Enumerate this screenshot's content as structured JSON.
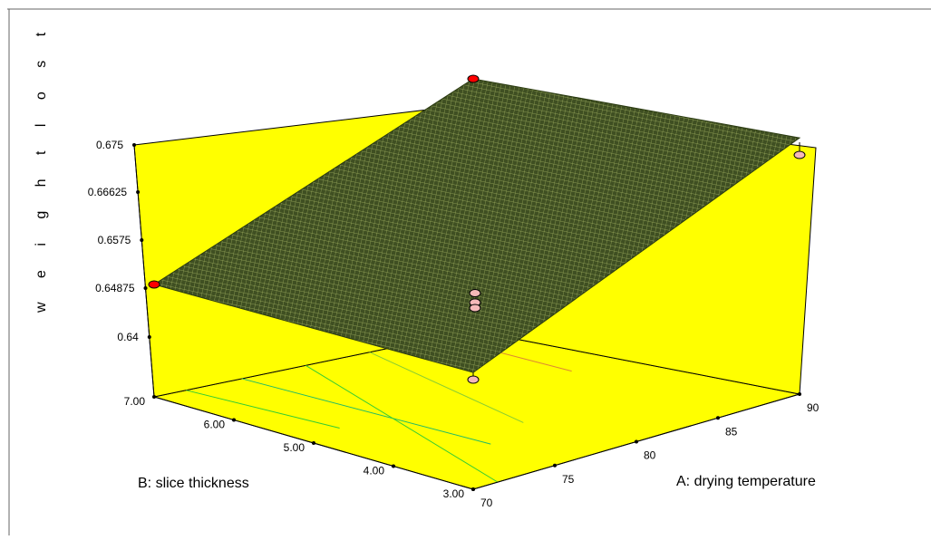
{
  "chart_data": {
    "type": "surface3d",
    "title": "",
    "x_axis": {
      "label": "A: drying temperature",
      "ticks": [
        70,
        75,
        80,
        85,
        90
      ],
      "tick_labels": [
        "70",
        "75",
        "80",
        "85",
        "90"
      ],
      "range": [
        70,
        90
      ]
    },
    "y_axis": {
      "label": "B: slice thickness",
      "ticks": [
        3,
        4,
        5,
        6,
        7
      ],
      "tick_labels": [
        "3.00",
        "4.00",
        "5.00",
        "6.00",
        "7.00"
      ],
      "range": [
        3,
        7
      ]
    },
    "z_axis": {
      "label": "w e i g h t   l o s t",
      "ticks": [
        0.64,
        0.64875,
        0.6575,
        0.66625,
        0.675
      ],
      "tick_labels": [
        "0.64",
        "0.64875",
        "0.6575",
        "0.66625",
        "0.675"
      ],
      "range": [
        0.64,
        0.675
      ]
    },
    "surface_corners": [
      {
        "x": 70,
        "y": 3,
        "z": 0.6505
      },
      {
        "x": 90,
        "y": 3,
        "z": 0.6758
      },
      {
        "x": 90,
        "y": 7,
        "z": 0.675
      },
      {
        "x": 70,
        "y": 7,
        "z": 0.6497
      }
    ],
    "design_points": [
      {
        "x": 70,
        "y": 7,
        "z": 0.6497,
        "position": "above"
      },
      {
        "x": 90,
        "y": 7,
        "z": 0.675,
        "position": "above"
      },
      {
        "x": 90,
        "y": 3,
        "z": 0.6727,
        "position": "below"
      },
      {
        "x": 70,
        "y": 3,
        "z": 0.6492,
        "position": "below"
      },
      {
        "x": 80,
        "y": 5,
        "z": 0.6475,
        "position": "below"
      },
      {
        "x": 80,
        "y": 5,
        "z": 0.6465,
        "position": "below"
      },
      {
        "x": 80,
        "y": 5,
        "z": 0.6492,
        "position": "below"
      }
    ],
    "colors": {
      "background": "#ffff00",
      "surface": "#4a5a2a",
      "mesh": "#9aaa55",
      "point_above": "#ff0000",
      "point_below": "#f5b8b8"
    }
  }
}
